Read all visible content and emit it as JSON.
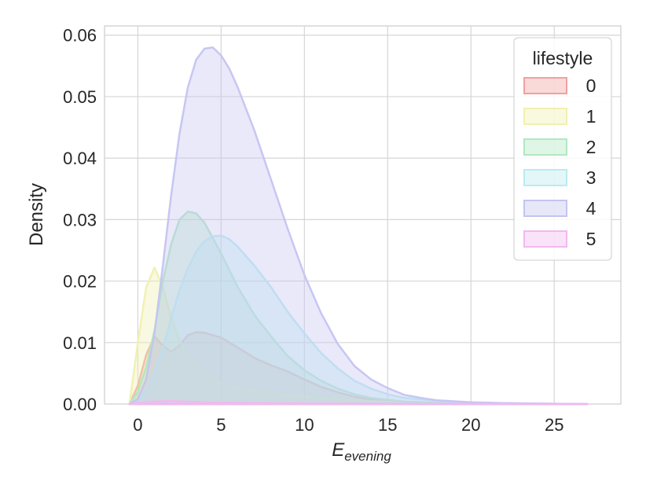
{
  "chart_data": {
    "type": "area",
    "xlabel_main": "E",
    "xlabel_sub": "evening",
    "ylabel": "Density",
    "xlim": [
      -2,
      29
    ],
    "ylim": [
      0,
      0.0615
    ],
    "xticks": [
      0,
      5,
      10,
      15,
      20,
      25
    ],
    "yticks": [
      0.0,
      0.01,
      0.02,
      0.03,
      0.04,
      0.05,
      0.06
    ],
    "ytick_labels": [
      "0.00",
      "0.01",
      "0.02",
      "0.03",
      "0.04",
      "0.05",
      "0.06"
    ],
    "grid": true,
    "legend": {
      "title": "lifestyle",
      "placement": "top-right"
    },
    "series": [
      {
        "name": "0",
        "color": "#f2a0a0",
        "x": [
          -0.5,
          0,
          0.5,
          1,
          1.5,
          2,
          2.5,
          3,
          3.5,
          4,
          5,
          6,
          7,
          8,
          9,
          10,
          11,
          12,
          13,
          14,
          16,
          18,
          20,
          23,
          27
        ],
        "y": [
          0.0,
          0.003,
          0.008,
          0.011,
          0.0095,
          0.0085,
          0.0095,
          0.0112,
          0.0117,
          0.0116,
          0.0108,
          0.0092,
          0.0075,
          0.0063,
          0.0053,
          0.004,
          0.0028,
          0.0019,
          0.0012,
          0.0007,
          0.0003,
          0.00015,
          0.0001,
          5e-05,
          0.0
        ]
      },
      {
        "name": "1",
        "color": "#f0f0b0",
        "x": [
          -0.5,
          0,
          0.5,
          1,
          1.5,
          2,
          2.5,
          3,
          4,
          5,
          6,
          8,
          10,
          12,
          14,
          16,
          18,
          22,
          27
        ],
        "y": [
          0.0,
          0.01,
          0.019,
          0.0222,
          0.019,
          0.014,
          0.0105,
          0.0075,
          0.0048,
          0.0033,
          0.0025,
          0.0017,
          0.0012,
          0.0008,
          0.0005,
          0.0003,
          0.0002,
          0.0001,
          0.0
        ]
      },
      {
        "name": "2",
        "color": "#b0e8c0",
        "x": [
          -0.5,
          0,
          0.5,
          1,
          1.5,
          2,
          2.5,
          3,
          3.5,
          4,
          4.5,
          5,
          6,
          7,
          8,
          9,
          10,
          11,
          12,
          13,
          14,
          16,
          18,
          20,
          24,
          27
        ],
        "y": [
          0.0,
          0.002,
          0.006,
          0.012,
          0.02,
          0.026,
          0.03,
          0.0313,
          0.031,
          0.0295,
          0.027,
          0.0245,
          0.019,
          0.0145,
          0.011,
          0.0078,
          0.0055,
          0.0038,
          0.0025,
          0.0016,
          0.001,
          0.0004,
          0.0002,
          0.0001,
          5e-05,
          0.0
        ]
      },
      {
        "name": "3",
        "color": "#b8ecf0",
        "x": [
          -0.5,
          0,
          0.5,
          1,
          1.5,
          2,
          2.5,
          3,
          3.5,
          4,
          4.5,
          5,
          5.5,
          6,
          7,
          8,
          9,
          10,
          11,
          12,
          13,
          14,
          15,
          16,
          18,
          20,
          23,
          27
        ],
        "y": [
          0.0,
          0.0005,
          0.002,
          0.005,
          0.009,
          0.014,
          0.0185,
          0.022,
          0.0248,
          0.0265,
          0.0273,
          0.0274,
          0.0268,
          0.0256,
          0.0225,
          0.019,
          0.015,
          0.0115,
          0.0083,
          0.0058,
          0.0038,
          0.0025,
          0.0016,
          0.001,
          0.0005,
          0.0002,
          0.0001,
          0.0
        ]
      },
      {
        "name": "4",
        "color": "#c4c4f2",
        "x": [
          -0.5,
          0,
          0.5,
          1,
          1.5,
          2,
          2.5,
          3,
          3.5,
          4,
          4.5,
          5,
          5.5,
          6,
          6.5,
          7,
          7.5,
          8,
          9,
          10,
          11,
          12,
          13,
          14,
          15,
          16,
          17,
          18,
          20,
          22,
          25,
          27
        ],
        "y": [
          0.0,
          0.0008,
          0.004,
          0.0115,
          0.0225,
          0.034,
          0.044,
          0.0515,
          0.056,
          0.0578,
          0.058,
          0.0567,
          0.0545,
          0.0515,
          0.048,
          0.0445,
          0.0405,
          0.0365,
          0.0285,
          0.021,
          0.0148,
          0.0098,
          0.0062,
          0.004,
          0.0026,
          0.0015,
          0.001,
          0.0006,
          0.0003,
          0.00015,
          5e-05,
          0.0
        ]
      },
      {
        "name": "5",
        "color": "#f2b8ee",
        "x": [
          -0.5,
          0,
          1,
          2,
          3,
          4,
          6,
          10,
          27
        ],
        "y": [
          0.0,
          0.0002,
          0.0004,
          0.0005,
          0.0004,
          0.0003,
          0.0002,
          0.0001,
          0.0
        ]
      }
    ]
  }
}
